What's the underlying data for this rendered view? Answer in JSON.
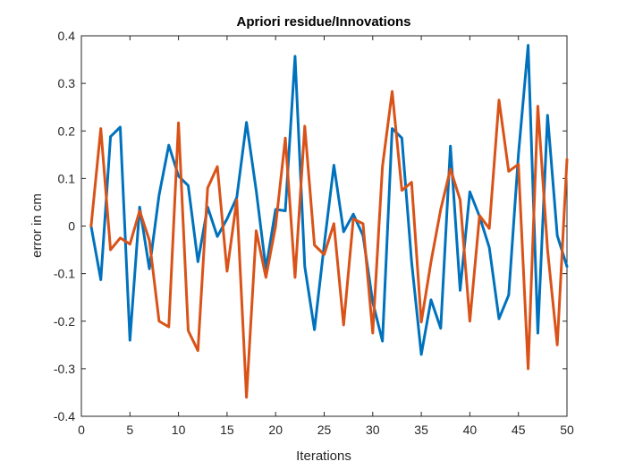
{
  "chart_data": {
    "type": "line",
    "title": "Apriori residue/Innovations",
    "xlabel": "Iterations",
    "ylabel": "error in cm",
    "xlim": [
      0,
      50
    ],
    "ylim": [
      -0.4,
      0.4
    ],
    "x_ticks": [
      0,
      5,
      10,
      15,
      20,
      25,
      30,
      35,
      40,
      45,
      50
    ],
    "y_ticks": [
      -0.4,
      -0.3,
      -0.2,
      -0.1,
      0,
      0.1,
      0.2,
      0.3,
      0.4
    ],
    "x_tick_labels": [
      "0",
      "5",
      "10",
      "15",
      "20",
      "25",
      "30",
      "35",
      "40",
      "45",
      "50"
    ],
    "y_tick_labels": [
      "-0.4",
      "-0.3",
      "-0.2",
      "-0.1",
      "0",
      "0.1",
      "0.2",
      "0.3",
      "0.4"
    ],
    "grid": false,
    "legend": "none",
    "x": [
      1,
      2,
      3,
      4,
      5,
      6,
      7,
      8,
      9,
      10,
      11,
      12,
      13,
      14,
      15,
      16,
      17,
      18,
      19,
      20,
      21,
      22,
      23,
      24,
      25,
      26,
      27,
      28,
      29,
      30,
      31,
      32,
      33,
      34,
      35,
      36,
      37,
      38,
      39,
      40,
      41,
      42,
      43,
      44,
      45,
      46,
      47,
      48,
      49,
      50
    ],
    "series": [
      {
        "color": "#0072BD",
        "values": [
          0.0,
          -0.113,
          0.188,
          0.208,
          -0.24,
          0.04,
          -0.09,
          0.065,
          0.17,
          0.105,
          0.085,
          -0.075,
          0.04,
          -0.022,
          0.015,
          0.06,
          0.218,
          0.075,
          -0.09,
          0.035,
          0.032,
          0.357,
          -0.085,
          -0.218,
          -0.04,
          0.128,
          -0.012,
          0.025,
          -0.02,
          -0.16,
          -0.242,
          0.205,
          0.185,
          -0.075,
          -0.27,
          -0.155,
          -0.215,
          0.168,
          -0.135,
          0.072,
          0.02,
          -0.045,
          -0.195,
          -0.145,
          0.15,
          0.38,
          -0.225,
          0.233,
          -0.02,
          -0.085
        ]
      },
      {
        "color": "#D95319",
        "values": [
          0.0,
          0.205,
          -0.05,
          -0.025,
          -0.038,
          0.032,
          -0.03,
          -0.2,
          -0.212,
          0.217,
          -0.22,
          -0.262,
          0.08,
          0.125,
          -0.095,
          0.055,
          -0.36,
          -0.01,
          -0.108,
          0.0,
          0.185,
          -0.108,
          0.21,
          -0.04,
          -0.06,
          0.005,
          -0.208,
          0.015,
          0.005,
          -0.225,
          0.125,
          0.283,
          0.075,
          0.092,
          -0.202,
          -0.075,
          0.035,
          0.12,
          0.055,
          -0.2,
          0.022,
          -0.005,
          0.265,
          0.115,
          0.13,
          -0.3,
          0.252,
          -0.05,
          -0.25,
          0.14
        ]
      }
    ]
  }
}
